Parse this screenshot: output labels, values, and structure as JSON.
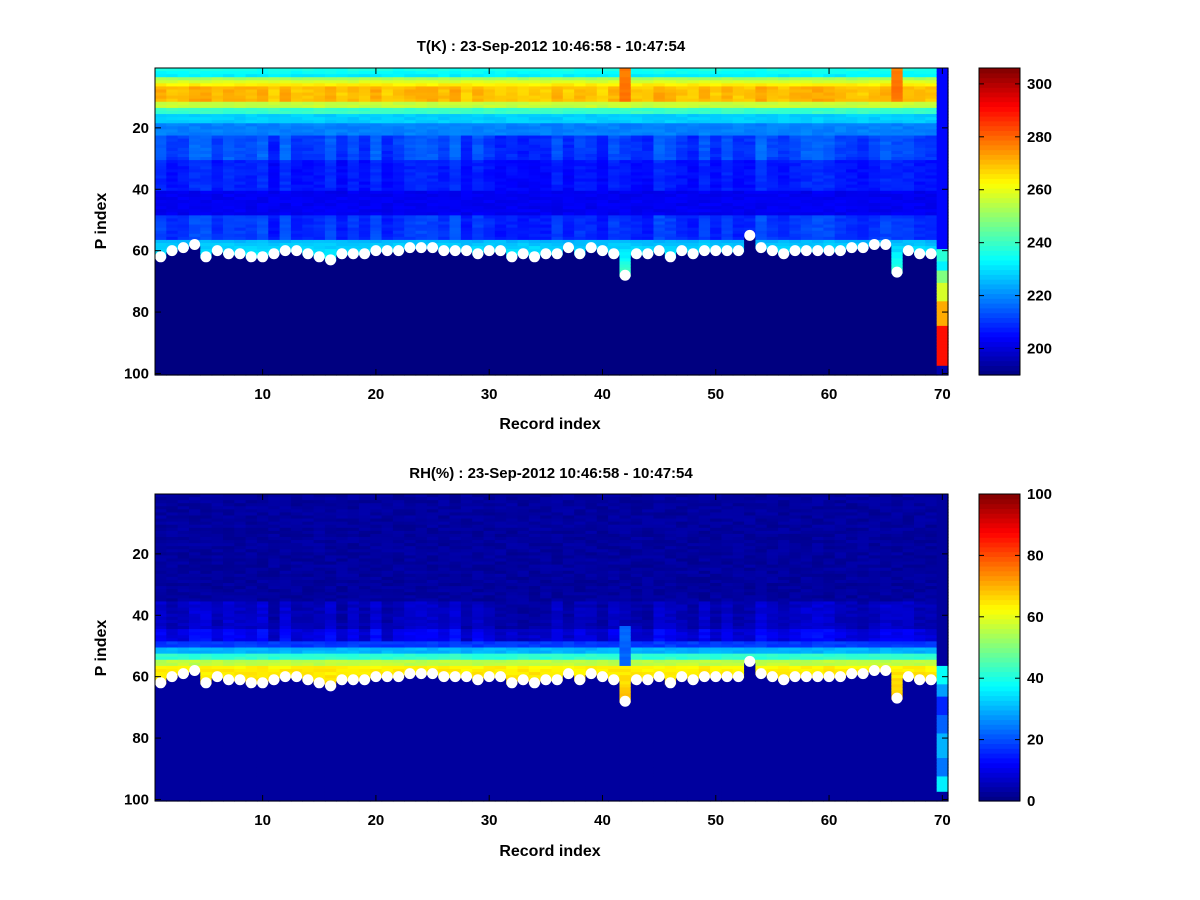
{
  "chart_data": [
    {
      "type": "heatmap",
      "variable": "T",
      "title": "T(K) : 23-Sep-2012 10:46:58 - 10:47:54",
      "xlabel": "Record index",
      "ylabel": "P index",
      "xlim": [
        0.5,
        70.5
      ],
      "ylim": [
        0.5,
        100.5
      ],
      "x_ticks": [
        10,
        20,
        30,
        40,
        50,
        60,
        70
      ],
      "y_ticks": [
        20,
        40,
        60,
        80,
        100
      ],
      "y_reversed": true,
      "colorbar": {
        "min": 190,
        "max": 306,
        "ticks": [
          200,
          220,
          240,
          260,
          280,
          300
        ],
        "colormap": "jet"
      },
      "surface_index": [
        62,
        60,
        59,
        58,
        62,
        60,
        61,
        61,
        62,
        62,
        61,
        60,
        60,
        61,
        62,
        63,
        61,
        61,
        61,
        60,
        60,
        60,
        59,
        59,
        59,
        60,
        60,
        60,
        61,
        60,
        60,
        62,
        61,
        62,
        61,
        61,
        59,
        61,
        59,
        60,
        61,
        68,
        61,
        61,
        60,
        62,
        60,
        61,
        60,
        60,
        60,
        60,
        55,
        59,
        60,
        61,
        60,
        60,
        60,
        60,
        60,
        59,
        59,
        58,
        58,
        67,
        60,
        61,
        61
      ],
      "surface_marker_color": "#ffffff"
    },
    {
      "type": "heatmap",
      "variable": "RH",
      "title": "RH(%) : 23-Sep-2012 10:46:58 - 10:47:54",
      "xlabel": "Record index",
      "ylabel": "P index",
      "xlim": [
        0.5,
        70.5
      ],
      "ylim": [
        0.5,
        100.5
      ],
      "x_ticks": [
        10,
        20,
        30,
        40,
        50,
        60,
        70
      ],
      "y_ticks": [
        20,
        40,
        60,
        80,
        100
      ],
      "y_reversed": true,
      "colorbar": {
        "min": 0,
        "max": 100,
        "ticks": [
          0,
          20,
          40,
          60,
          80,
          100
        ],
        "colormap": "jet"
      },
      "surface_index": [
        62,
        60,
        59,
        58,
        62,
        60,
        61,
        61,
        62,
        62,
        61,
        60,
        60,
        61,
        62,
        63,
        61,
        61,
        61,
        60,
        60,
        60,
        59,
        59,
        59,
        60,
        60,
        60,
        61,
        60,
        60,
        62,
        61,
        62,
        61,
        61,
        59,
        61,
        59,
        60,
        61,
        68,
        61,
        61,
        60,
        62,
        60,
        61,
        60,
        60,
        60,
        60,
        55,
        59,
        60,
        61,
        60,
        60,
        60,
        60,
        60,
        59,
        59,
        58,
        58,
        67,
        60,
        61,
        61
      ],
      "surface_marker_color": "#ffffff"
    }
  ]
}
